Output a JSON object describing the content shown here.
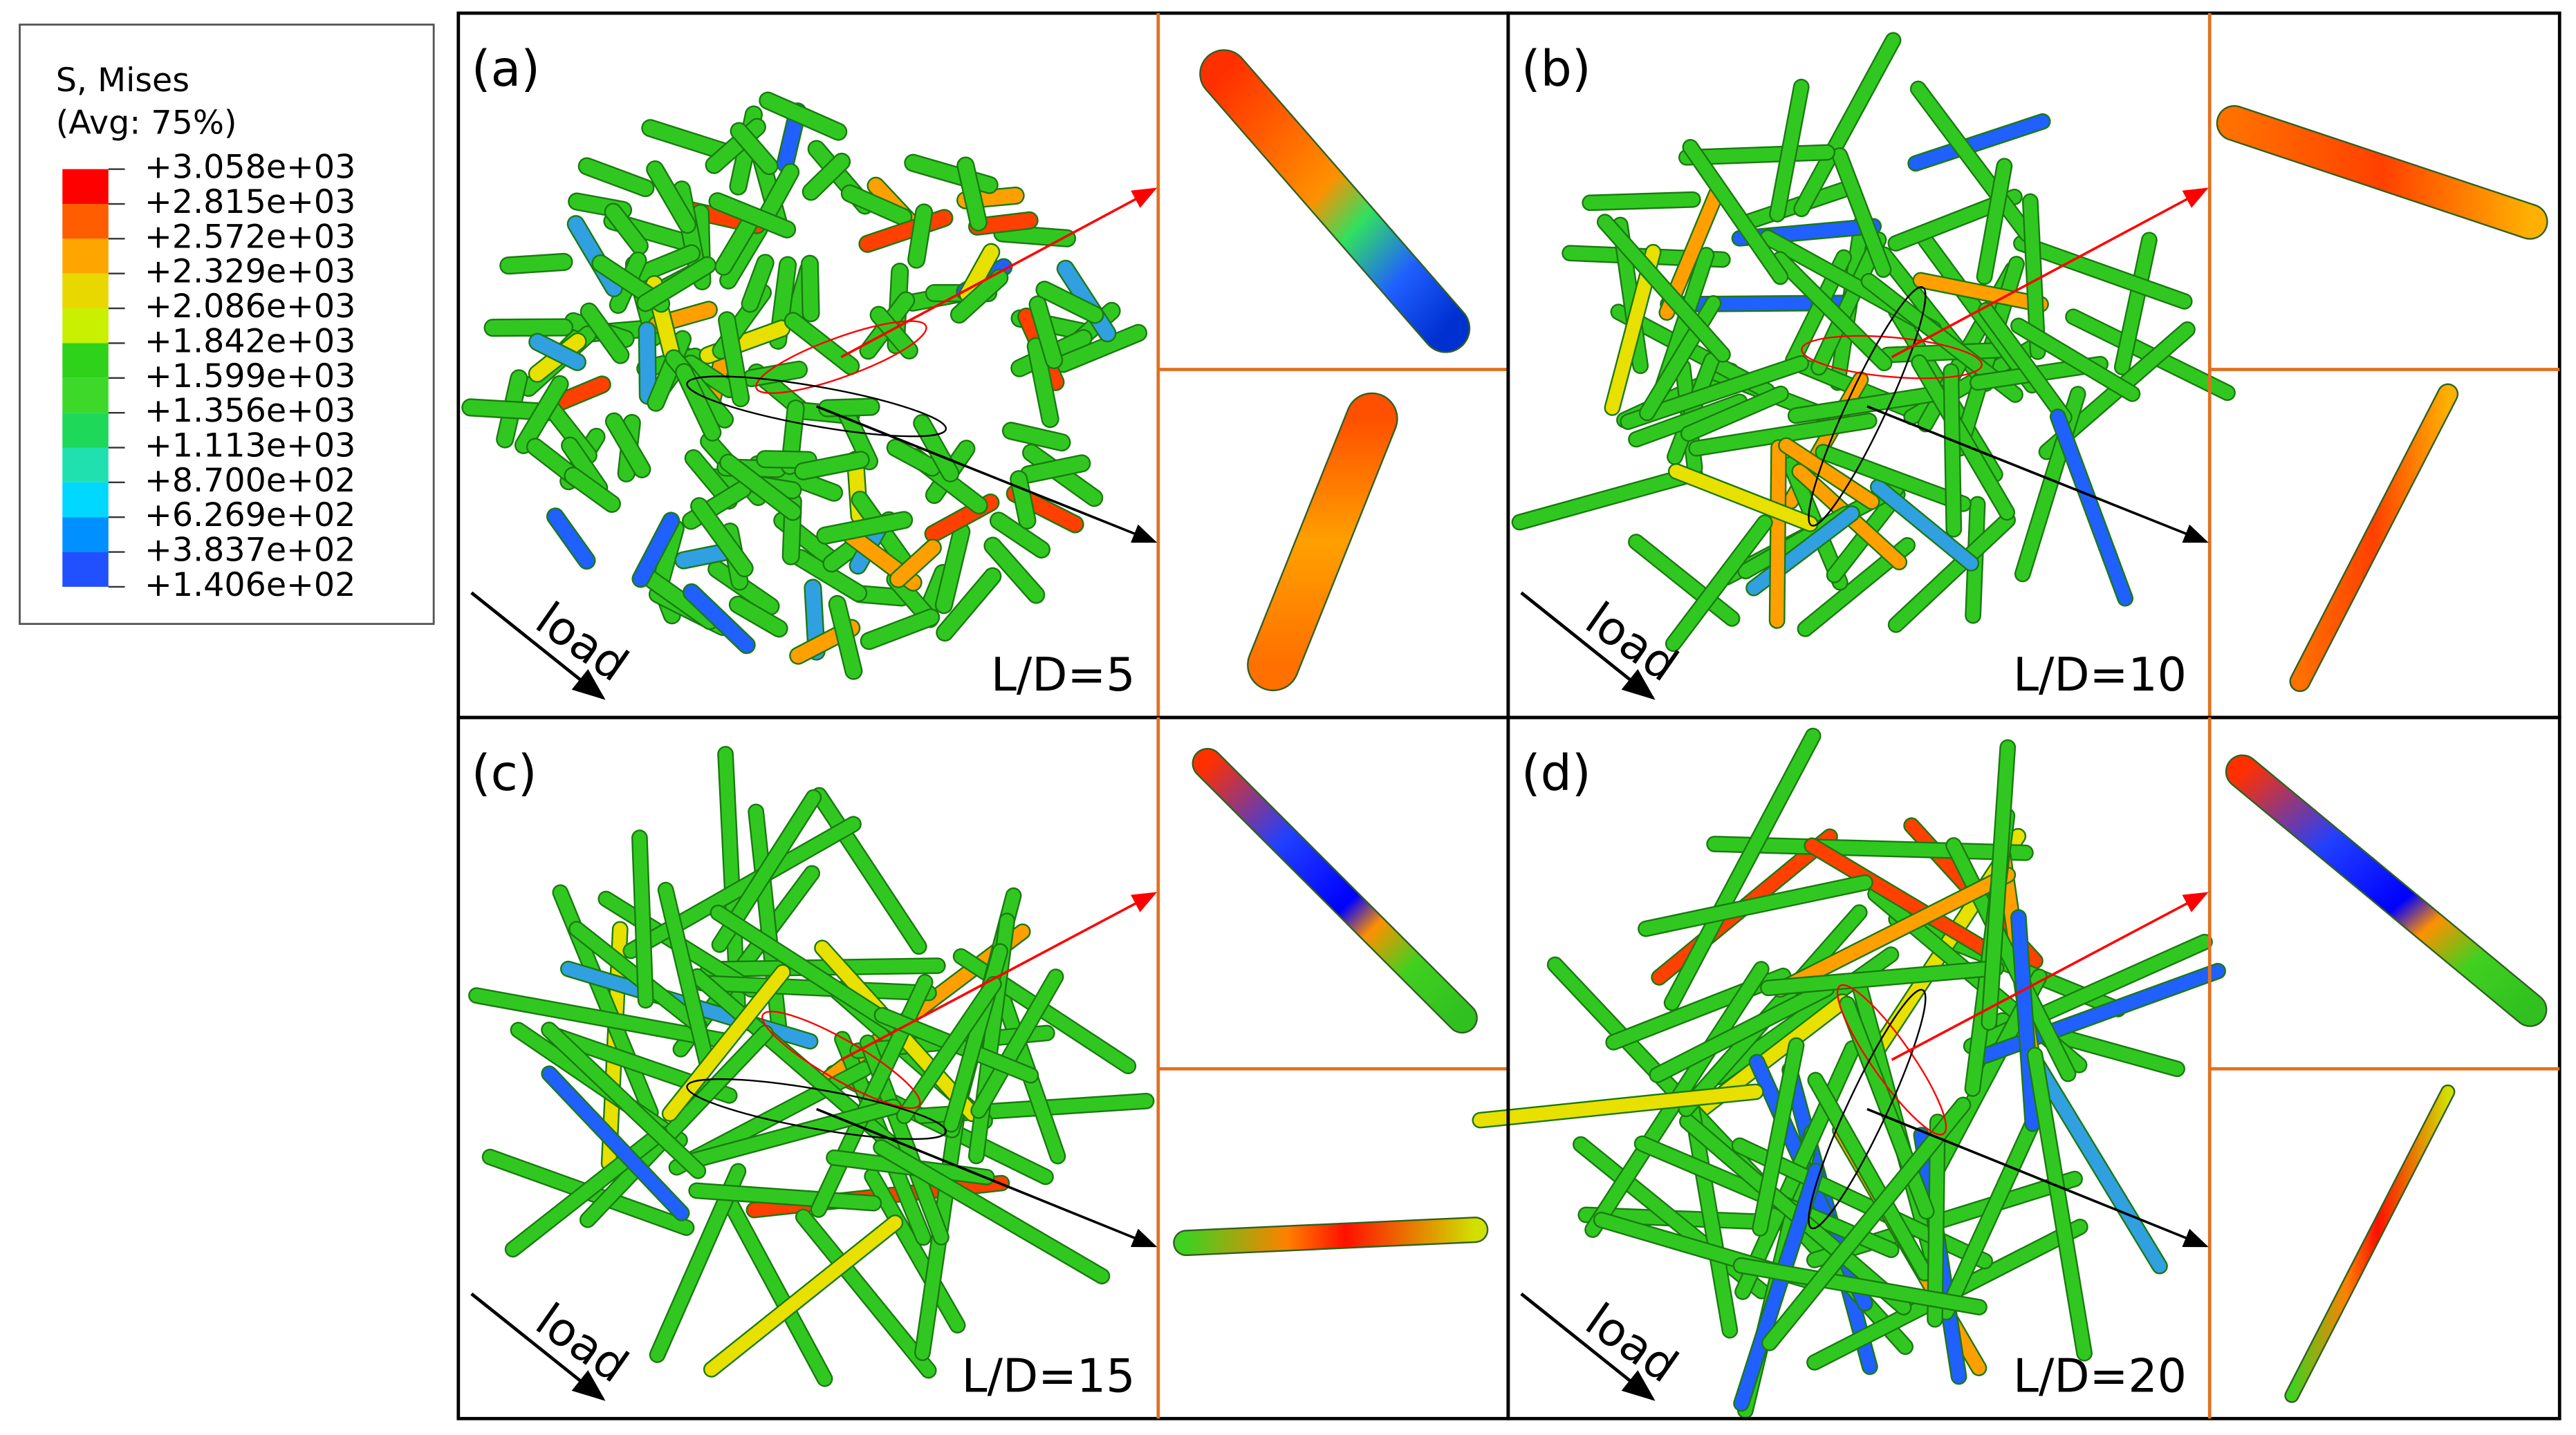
{
  "legend": {
    "title": "S, Mises",
    "subtitle": "(Avg: 75%)",
    "labels": [
      "+3.058e+03",
      "+2.815e+03",
      "+2.572e+03",
      "+2.329e+03",
      "+2.086e+03",
      "+1.842e+03",
      "+1.599e+03",
      "+1.356e+03",
      "+1.113e+03",
      "+8.700e+02",
      "+6.269e+02",
      "+3.837e+02",
      "+1.406e+02"
    ],
    "colors": [
      "#ff0000",
      "#ff5d00",
      "#ffa500",
      "#e8d800",
      "#c8f000",
      "#2ed21a",
      "#3ed82a",
      "#1ed85a",
      "#20e0b0",
      "#00d8ff",
      "#0090ff",
      "#2050ff",
      "#0000ff"
    ]
  },
  "panels": [
    {
      "label": "(a)",
      "ratio": "L/D=5",
      "load": "load"
    },
    {
      "label": "(b)",
      "ratio": "L/D=10",
      "load": "load"
    },
    {
      "label": "(c)",
      "ratio": "L/D=15",
      "load": "load"
    },
    {
      "label": "(d)",
      "ratio": "L/D=20",
      "load": "load"
    }
  ]
}
